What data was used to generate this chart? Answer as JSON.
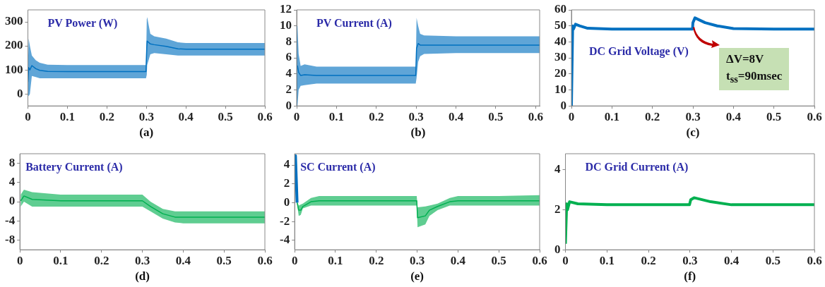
{
  "chart_data": [
    {
      "type": "line",
      "title": "PV Power (W)",
      "xlabel": "(a)",
      "x": [
        0,
        0.002,
        0.005,
        0.01,
        0.02,
        0.03,
        0.05,
        0.1,
        0.2,
        0.299,
        0.301,
        0.302,
        0.31,
        0.32,
        0.35,
        0.38,
        0.4,
        0.5,
        0.6
      ],
      "xlim": [
        0,
        0.6
      ],
      "xticks": [
        0,
        0.1,
        0.2,
        0.3,
        0.4,
        0.5,
        0.6
      ],
      "ylim": [
        -50,
        350
      ],
      "yticks": [
        0,
        100,
        200,
        300
      ],
      "grid": false,
      "legend": false,
      "series": [
        {
          "color": "#0070c0",
          "values": [
            50,
            110,
            100,
            118,
            105,
            98,
            94,
            93,
            93,
            93,
            195,
            220,
            208,
            205,
            198,
            188,
            186,
            186,
            186
          ],
          "lower": [
            0,
            -10,
            0,
            75,
            70,
            65,
            65,
            65,
            65,
            65,
            80,
            120,
            165,
            170,
            165,
            160,
            160,
            160,
            160
          ],
          "upper": [
            100,
            230,
            200,
            160,
            140,
            130,
            122,
            120,
            120,
            120,
            310,
            320,
            250,
            240,
            230,
            215,
            212,
            212,
            212
          ]
        }
      ]
    },
    {
      "type": "line",
      "title": "PV Current (A)",
      "xlabel": "(b)",
      "x": [
        0,
        0.002,
        0.005,
        0.01,
        0.02,
        0.05,
        0.1,
        0.2,
        0.299,
        0.301,
        0.305,
        0.31,
        0.32,
        0.4,
        0.5,
        0.61
      ],
      "xlim": [
        0,
        0.61
      ],
      "xticks": [
        0,
        0.1,
        0.2,
        0.3,
        0.4,
        0.5,
        0.6
      ],
      "ylim": [
        0,
        12
      ],
      "yticks": [
        0,
        2,
        4,
        6,
        8,
        10,
        12
      ],
      "grid": false,
      "legend": false,
      "series": [
        {
          "color": "#0070c0",
          "values": [
            5,
            5,
            4.2,
            3.8,
            3.9,
            3.8,
            3.8,
            3.8,
            3.8,
            7.2,
            7.8,
            7.6,
            7.6,
            7.6,
            7.6,
            7.6
          ],
          "lower": [
            0,
            0,
            2,
            2.5,
            2.6,
            2.8,
            2.8,
            2.8,
            2.8,
            3.5,
            5.5,
            6.2,
            6.5,
            6.6,
            6.6,
            6.6
          ],
          "upper": [
            10,
            10,
            6.5,
            5,
            5.2,
            4.9,
            4.9,
            4.9,
            4.9,
            11,
            10,
            9,
            8.8,
            8.7,
            8.7,
            8.7
          ]
        }
      ]
    },
    {
      "type": "line",
      "title": "DC Grid Voltage (V)",
      "xlabel": "(c)",
      "x": [
        0,
        0.003,
        0.005,
        0.01,
        0.02,
        0.04,
        0.1,
        0.2,
        0.299,
        0.3,
        0.305,
        0.33,
        0.36,
        0.4,
        0.5,
        0.6
      ],
      "xlim": [
        0,
        0.6
      ],
      "xticks": [
        0,
        0.1,
        0.2,
        0.3,
        0.4,
        0.5,
        0.6
      ],
      "ylim": [
        0,
        60
      ],
      "yticks": [
        0,
        10,
        20,
        30,
        40,
        50,
        60
      ],
      "grid": false,
      "legend": false,
      "annotations": [
        "ΔV=8V",
        "t$_{ss}$=90msec"
      ],
      "series": [
        {
          "color": "#0070c0",
          "values": [
            0,
            50,
            48,
            51,
            50,
            48.5,
            48,
            48,
            48,
            52,
            55,
            52,
            50,
            48.3,
            48,
            48
          ]
        }
      ]
    },
    {
      "type": "line",
      "title": "Battery Current (A)",
      "xlabel": "(d)",
      "x": [
        0.002,
        0.01,
        0.03,
        0.1,
        0.2,
        0.3,
        0.32,
        0.35,
        0.38,
        0.4,
        0.5,
        0.6
      ],
      "xlim": [
        0,
        0.6
      ],
      "xticks": [
        0,
        0.1,
        0.2,
        0.3,
        0.4,
        0.5,
        0.6
      ],
      "ylim": [
        -10,
        10
      ],
      "yticks": [
        -8,
        -4,
        0,
        4,
        8
      ],
      "grid": false,
      "legend": false,
      "series": [
        {
          "color": "#00b050",
          "values": [
            0.2,
            1.2,
            0.5,
            0.2,
            0.2,
            0.2,
            -1,
            -2.5,
            -3.2,
            -3.2,
            -3.2,
            -3.2
          ],
          "lower": [
            -1,
            0,
            -1,
            -1,
            -1,
            -1,
            -2,
            -3.5,
            -4.3,
            -4.5,
            -4.5,
            -4.5
          ],
          "upper": [
            1.5,
            2.5,
            2,
            1.5,
            1.5,
            1.5,
            0,
            -1.5,
            -2,
            -2,
            -2,
            -2
          ]
        }
      ]
    },
    {
      "type": "line",
      "title": "SC Current (A)",
      "xlabel": "(e)",
      "x": [
        0.006,
        0.01,
        0.015,
        0.02,
        0.04,
        0.06,
        0.1,
        0.2,
        0.299,
        0.301,
        0.32,
        0.33,
        0.35,
        0.38,
        0.4,
        0.5,
        0.6
      ],
      "xlim": [
        0,
        0.6
      ],
      "xticks": [
        0,
        0.1,
        0.2,
        0.3,
        0.4,
        0.5,
        0.6
      ],
      "ylim": [
        -5,
        5.2
      ],
      "yticks": [
        -4,
        -2,
        0,
        2,
        4
      ],
      "grid": false,
      "legend": false,
      "series": [
        {
          "color": "#0070c0",
          "x": [
            0,
            0.002,
            0.006
          ],
          "values": [
            5,
            5,
            0
          ]
        },
        {
          "color": "#00b050",
          "values": [
            0,
            -0.8,
            -0.8,
            -0.4,
            0.1,
            0.2,
            0.2,
            0.2,
            0.2,
            -1.6,
            -1.4,
            -0.8,
            -0.4,
            0.1,
            0.2,
            0.2,
            0.2
          ],
          "lower": [
            -0.2,
            -1.4,
            -1.3,
            -0.6,
            -0.3,
            -0.3,
            -0.3,
            -0.3,
            -0.3,
            -2.6,
            -2.3,
            -1.4,
            -0.8,
            -0.3,
            -0.3,
            -0.3,
            -0.3
          ],
          "upper": [
            0.2,
            -0.3,
            -0.2,
            -0.1,
            0.5,
            0.7,
            0.7,
            0.7,
            0.7,
            -0.5,
            -0.4,
            -0.3,
            -0.1,
            0.5,
            0.7,
            0.7,
            0.8
          ]
        }
      ]
    },
    {
      "type": "line",
      "title": "DC Grid Current (A)",
      "xlabel": "(f)",
      "x": [
        0,
        0.003,
        0.005,
        0.01,
        0.03,
        0.1,
        0.2,
        0.299,
        0.302,
        0.31,
        0.35,
        0.4,
        0.5,
        0.6
      ],
      "xlim": [
        0,
        0.6
      ],
      "xticks": [
        0,
        0.1,
        0.2,
        0.3,
        0.4,
        0.5,
        0.6
      ],
      "ylim": [
        0,
        4.8
      ],
      "yticks": [
        0,
        2,
        4
      ],
      "grid": false,
      "legend": false,
      "series": [
        {
          "color": "#00b050",
          "values": [
            0.3,
            2.3,
            2.0,
            2.4,
            2.3,
            2.25,
            2.25,
            2.25,
            2.5,
            2.6,
            2.4,
            2.25,
            2.25,
            2.25
          ]
        }
      ]
    }
  ]
}
